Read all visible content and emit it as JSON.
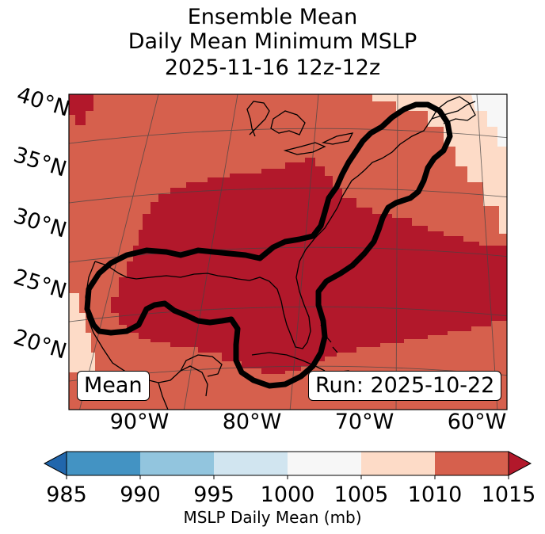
{
  "title": {
    "line1": "Ensemble Mean",
    "line2": "Daily Mean Minimum MSLP",
    "line3": "2025-11-16 12z-12z"
  },
  "chart_data": {
    "type": "map-heatmap",
    "title": "Ensemble Mean Daily Mean Minimum MSLP 2025-11-16 12z-12z",
    "projection": "Lambert conformal",
    "lat_labels": [
      "40°N",
      "35°N",
      "30°N",
      "25°N",
      "20°N"
    ],
    "lon_labels": [
      "90°W",
      "80°W",
      "70°W",
      "60°W"
    ],
    "lat_range": [
      15,
      42
    ],
    "lon_range": [
      -97,
      -58
    ],
    "fields": [
      {
        "label": "1010-1015 mb",
        "color": "#d6604d",
        "region": "background"
      },
      {
        "label": "1005-1010 mb",
        "color": "#fddbc7",
        "region": "northeast corner and southwest Mexico"
      },
      {
        "label": "1000-1005 mb",
        "color": "#f7f7f7",
        "region": "far northeast"
      },
      {
        "label": ">1015 mb",
        "color": "#b2182b",
        "region": "Gulf of Mexico, Southeast US and western Atlantic"
      }
    ],
    "contour": {
      "description": "thick black contour around Gulf coast, Florida and US East Coast to Nova Scotia",
      "color": "#000000"
    },
    "mean_label": "Mean",
    "run_label": "Run: 2025-10-22",
    "colorbar": {
      "label": "MSLP Daily Mean (mb)",
      "ticks": [
        "985",
        "990",
        "995",
        "1000",
        "1005",
        "1010",
        "1015"
      ],
      "bins": [
        {
          "from": 985,
          "to": 990,
          "color": "#4393c3"
        },
        {
          "from": 990,
          "to": 995,
          "color": "#92c5de"
        },
        {
          "from": 995,
          "to": 1000,
          "color": "#d1e5f0"
        },
        {
          "from": 1000,
          "to": 1005,
          "color": "#f7f7f7"
        },
        {
          "from": 1005,
          "to": 1010,
          "color": "#fddbc7"
        },
        {
          "from": 1010,
          "to": 1015,
          "color": "#d6604d"
        }
      ],
      "under_color": "#2166ac",
      "over_color": "#b2182b",
      "extend": "both"
    }
  },
  "colors": {
    "high": "#b2182b",
    "mid": "#d6604d",
    "light": "#fddbc7",
    "white": "#f7f7f7"
  }
}
